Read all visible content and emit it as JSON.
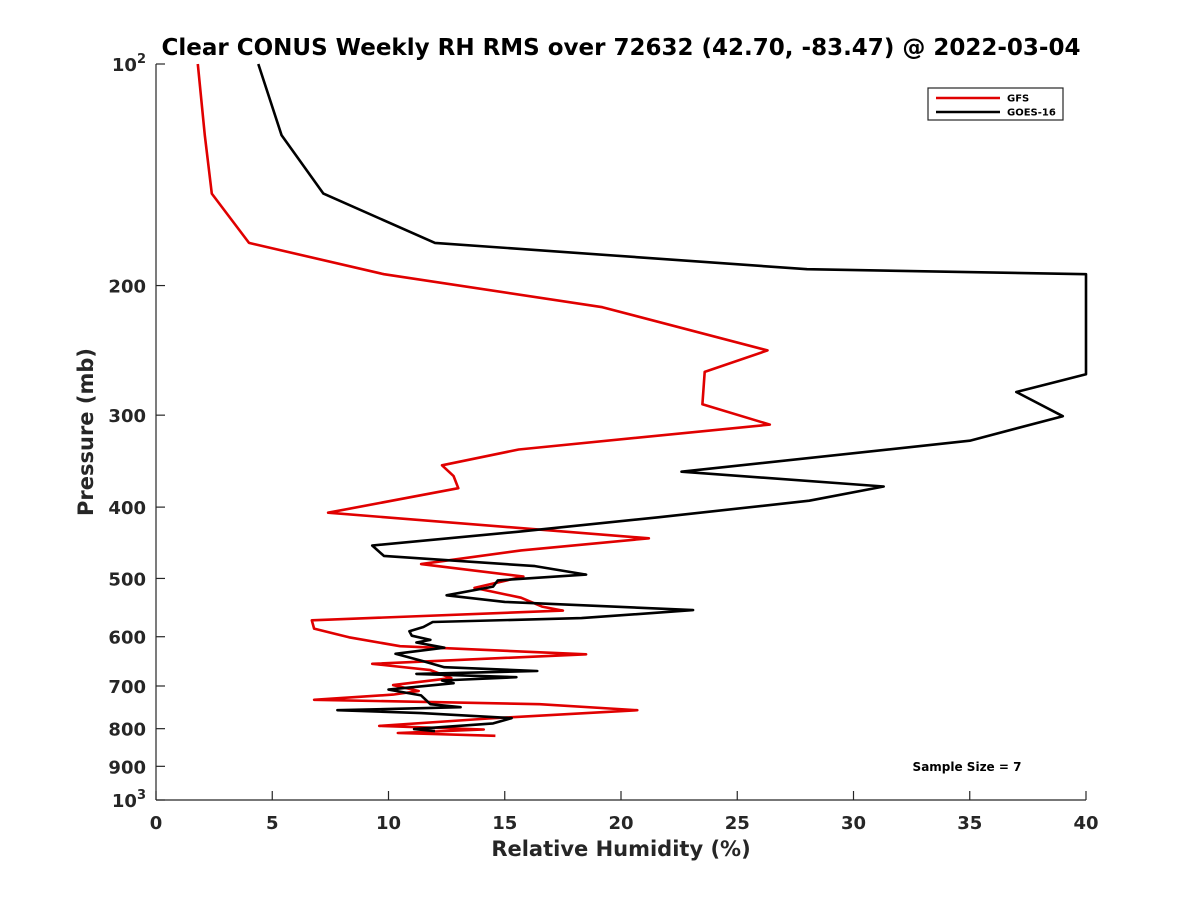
{
  "chart_data": {
    "type": "line",
    "title": "Clear CONUS Weekly RH RMS over 72632 (42.70, -83.47) @ 2022-03-04",
    "xlabel": "Relative Humidity (%)",
    "ylabel": "Pressure (mb)",
    "xlim": [
      0,
      40
    ],
    "ylim": [
      100,
      1000
    ],
    "y_scale": "log",
    "y_reversed": true,
    "x_ticks": [
      "0",
      "5",
      "10",
      "15",
      "20",
      "25",
      "30",
      "35",
      "40"
    ],
    "y_ticks": [
      {
        "value": 100,
        "base": "10",
        "exp": "2"
      },
      {
        "value": 200,
        "label": "200"
      },
      {
        "value": 300,
        "label": "300"
      },
      {
        "value": 400,
        "label": "400"
      },
      {
        "value": 500,
        "label": "500"
      },
      {
        "value": 600,
        "label": "600"
      },
      {
        "value": 700,
        "label": "700"
      },
      {
        "value": 800,
        "label": "800"
      },
      {
        "value": 900,
        "label": "900"
      },
      {
        "value": 1000,
        "base": "10",
        "exp": "3"
      }
    ],
    "legend_position": "top-right",
    "grid": false,
    "annotation": "Sample Size = 7",
    "series": [
      {
        "name": "GFS",
        "color": "#e00000",
        "points": [
          [
            1.8,
            100
          ],
          [
            2.1,
            125
          ],
          [
            2.4,
            150
          ],
          [
            4.0,
            175
          ],
          [
            9.8,
            193
          ],
          [
            19.2,
            214
          ],
          [
            26.3,
            245
          ],
          [
            23.6,
            262
          ],
          [
            23.5,
            290
          ],
          [
            26.4,
            309
          ],
          [
            15.6,
            334
          ],
          [
            12.3,
            351
          ],
          [
            12.8,
            363
          ],
          [
            13.0,
            377
          ],
          [
            7.4,
            407
          ],
          [
            21.2,
            441
          ],
          [
            15.7,
            458
          ],
          [
            11.4,
            478
          ],
          [
            15.8,
            497
          ],
          [
            13.7,
            515
          ],
          [
            15.7,
            531
          ],
          [
            16.6,
            546
          ],
          [
            17.5,
            553
          ],
          [
            6.7,
            570
          ],
          [
            6.8,
            585
          ],
          [
            8.3,
            601
          ],
          [
            10.5,
            618
          ],
          [
            18.5,
            634
          ],
          [
            9.3,
            653
          ],
          [
            11.8,
            666
          ],
          [
            12.7,
            683
          ],
          [
            10.2,
            698
          ],
          [
            11.3,
            711
          ],
          [
            10.2,
            719
          ],
          [
            6.8,
            731
          ],
          [
            16.5,
            741
          ],
          [
            20.7,
            755
          ],
          [
            14.3,
            775
          ],
          [
            9.6,
            793
          ],
          [
            14.1,
            802
          ],
          [
            10.4,
            811
          ],
          [
            14.6,
            818
          ]
        ]
      },
      {
        "name": "GOES-16",
        "color": "#000000",
        "points": [
          [
            4.4,
            100
          ],
          [
            5.4,
            125
          ],
          [
            7.2,
            150
          ],
          [
            12.0,
            175
          ],
          [
            28.0,
            190
          ],
          [
            40.0,
            193
          ],
          [
            40.0,
            264
          ],
          [
            37.0,
            279
          ],
          [
            39.0,
            301
          ],
          [
            35.0,
            325
          ],
          [
            22.6,
            358
          ],
          [
            31.3,
            375
          ],
          [
            28.1,
            392
          ],
          [
            21.6,
            413
          ],
          [
            15.6,
            432
          ],
          [
            9.3,
            451
          ],
          [
            9.8,
            466
          ],
          [
            16.3,
            481
          ],
          [
            18.5,
            494
          ],
          [
            14.7,
            503
          ],
          [
            14.5,
            513
          ],
          [
            12.5,
            527
          ],
          [
            15.0,
            538
          ],
          [
            23.1,
            552
          ],
          [
            18.3,
            566
          ],
          [
            11.9,
            573
          ],
          [
            11.5,
            582
          ],
          [
            10.9,
            590
          ],
          [
            11.0,
            598
          ],
          [
            11.8,
            606
          ],
          [
            11.2,
            611
          ],
          [
            12.4,
            621
          ],
          [
            10.3,
            633
          ],
          [
            11.5,
            648
          ],
          [
            12.4,
            660
          ],
          [
            16.4,
            668
          ],
          [
            11.2,
            674
          ],
          [
            15.5,
            681
          ],
          [
            12.3,
            688
          ],
          [
            12.8,
            694
          ],
          [
            10.0,
            708
          ],
          [
            11.4,
            721
          ],
          [
            11.8,
            741
          ],
          [
            13.1,
            748
          ],
          [
            7.8,
            755
          ],
          [
            11.4,
            762
          ],
          [
            15.3,
            774
          ],
          [
            14.5,
            787
          ],
          [
            11.1,
            801
          ],
          [
            12.0,
            806
          ]
        ]
      }
    ]
  }
}
